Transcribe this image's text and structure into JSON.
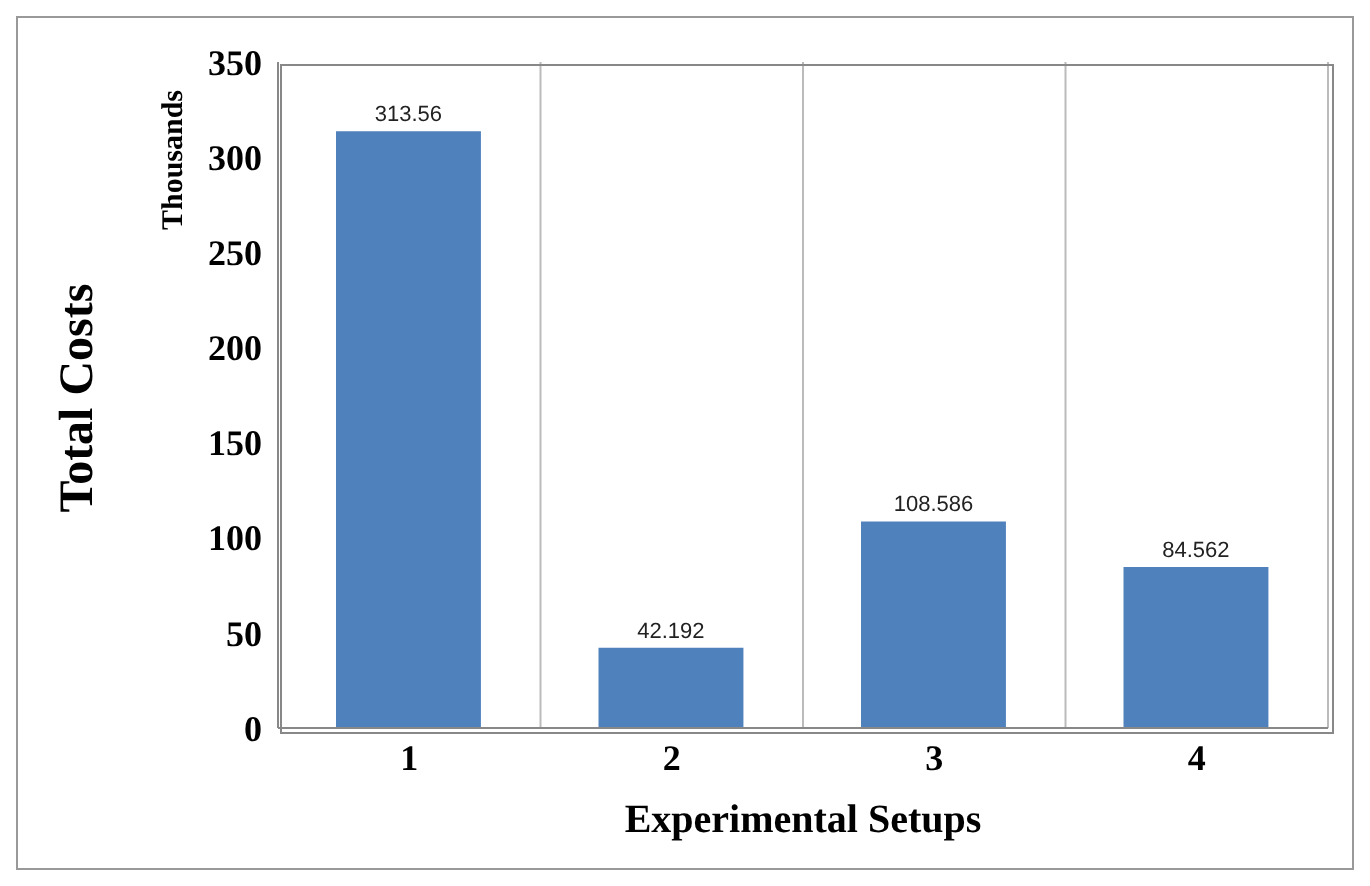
{
  "chart_data": {
    "type": "bar",
    "ylabel": "Total Costs",
    "xlabel": "Experimental Setups",
    "annotations": [
      "Thousands"
    ],
    "categories": [
      "1",
      "2",
      "3",
      "4"
    ],
    "values": [
      313.56,
      42.192,
      108.586,
      84.562
    ],
    "color": "#4f81bd",
    "data_labels": true,
    "ylim": [
      0,
      350
    ],
    "yticks": [
      0,
      50,
      100,
      150,
      200,
      250,
      300,
      350
    ],
    "grid": "x"
  }
}
